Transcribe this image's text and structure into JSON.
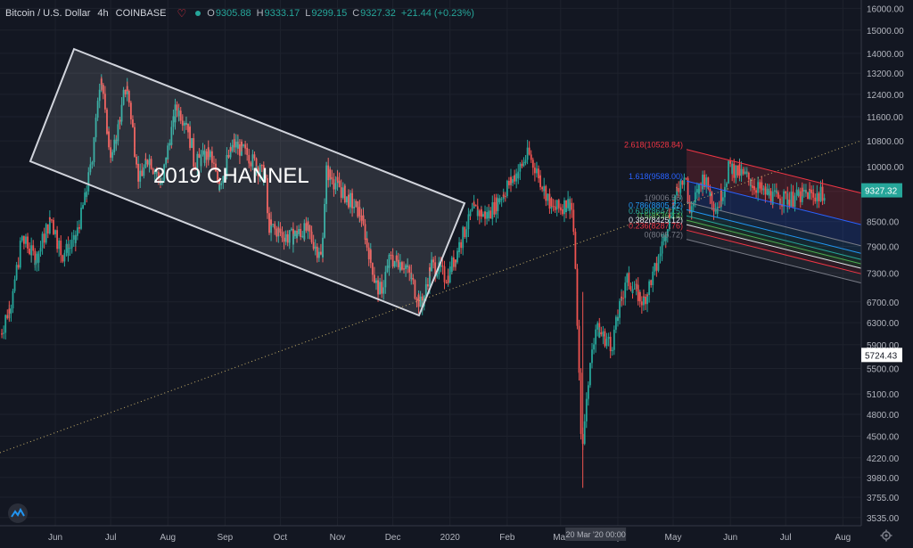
{
  "legend": {
    "symbol": "Bitcoin / U.S. Dollar",
    "timeframe": "4h",
    "exchange": "COINBASE",
    "o_label": "O",
    "o": "9305.88",
    "h_label": "H",
    "h": "9333.17",
    "l_label": "L",
    "l": "9299.15",
    "c_label": "C",
    "c": "9327.32",
    "change": "+21.44 (+0.23%)"
  },
  "colors": {
    "background": "#131722",
    "grid": "#1e222d",
    "up": "#26a69a",
    "down": "#ef5350",
    "axis_text": "#b2b5be",
    "channel": "#d1d4dc",
    "trendline": "#c9b26b"
  },
  "annotation": "2019 CHANNEL",
  "crosshair_label": "20 Mar '20   00:00",
  "chart_data": {
    "type": "candlestick",
    "title": "Bitcoin / U.S. Dollar",
    "ylabel": "",
    "xlabel": "",
    "y_scale": "log",
    "ylim": [
      3450,
      16400
    ],
    "x_range": [
      "2019-05-02",
      "2020-08-11"
    ],
    "y_ticks": [
      16000,
      15000,
      14000,
      13200,
      12400,
      11600,
      10800,
      10000,
      9300,
      8500,
      7900,
      7300,
      6700,
      6300,
      5900,
      5500,
      5100,
      4800,
      4500,
      4220,
      3980,
      3755,
      3535
    ],
    "y_tick_labels": [
      "16000.00",
      "15000.00",
      "14000.00",
      "13200.00",
      "12400.00",
      "11600.00",
      "10800.00",
      "10000.00",
      "",
      "8500.00",
      "7900.00",
      "7300.00",
      "6700.00",
      "6300.00",
      "5900.00",
      "5500.00",
      "5100.00",
      "4800.00",
      "4500.00",
      "4220.00",
      "3980.00",
      "3755.00",
      "3535.00"
    ],
    "x_ticks": [
      {
        "label": "Jun",
        "date": "2019-06-01"
      },
      {
        "label": "Jul",
        "date": "2019-07-01"
      },
      {
        "label": "Aug",
        "date": "2019-08-01"
      },
      {
        "label": "Sep",
        "date": "2019-09-01"
      },
      {
        "label": "Oct",
        "date": "2019-10-01"
      },
      {
        "label": "Nov",
        "date": "2019-11-01"
      },
      {
        "label": "Dec",
        "date": "2019-12-01"
      },
      {
        "label": "2020",
        "date": "2020-01-01"
      },
      {
        "label": "Feb",
        "date": "2020-02-01"
      },
      {
        "label": "Mar",
        "date": "2020-03-01"
      },
      {
        "label": "Apr",
        "date": "2020-04-01"
      },
      {
        "label": "May",
        "date": "2020-05-01"
      },
      {
        "label": "Jun",
        "date": "2020-06-01"
      },
      {
        "label": "Jul",
        "date": "2020-07-01"
      },
      {
        "label": "Aug",
        "date": "2020-08-01"
      }
    ],
    "price_path": [
      [
        "2019-05-03",
        6100
      ],
      [
        "2019-05-10",
        6900
      ],
      [
        "2019-05-14",
        8100
      ],
      [
        "2019-05-22",
        7600
      ],
      [
        "2019-05-30",
        8600
      ],
      [
        "2019-06-05",
        7700
      ],
      [
        "2019-06-12",
        8000
      ],
      [
        "2019-06-18",
        9200
      ],
      [
        "2019-06-22",
        10600
      ],
      [
        "2019-06-26",
        13300
      ],
      [
        "2019-06-29",
        11400
      ],
      [
        "2019-07-02",
        10200
      ],
      [
        "2019-07-10",
        12800
      ],
      [
        "2019-07-17",
        9600
      ],
      [
        "2019-07-22",
        10300
      ],
      [
        "2019-07-29",
        9500
      ],
      [
        "2019-08-06",
        11900
      ],
      [
        "2019-08-12",
        11400
      ],
      [
        "2019-08-16",
        10100
      ],
      [
        "2019-08-24",
        10400
      ],
      [
        "2019-08-29",
        9500
      ],
      [
        "2019-09-06",
        10700
      ],
      [
        "2019-09-15",
        10300
      ],
      [
        "2019-09-23",
        9700
      ],
      [
        "2019-09-25",
        8400
      ],
      [
        "2019-10-06",
        8100
      ],
      [
        "2019-10-16",
        8300
      ],
      [
        "2019-10-24",
        7600
      ],
      [
        "2019-10-26",
        9900
      ],
      [
        "2019-11-04",
        9300
      ],
      [
        "2019-11-14",
        8700
      ],
      [
        "2019-11-22",
        7100
      ],
      [
        "2019-11-25",
        6900
      ],
      [
        "2019-11-30",
        7600
      ],
      [
        "2019-12-08",
        7500
      ],
      [
        "2019-12-17",
        6600
      ],
      [
        "2019-12-22",
        7500
      ],
      [
        "2019-12-31",
        7200
      ],
      [
        "2020-01-08",
        8100
      ],
      [
        "2020-01-14",
        8800
      ],
      [
        "2020-01-22",
        8650
      ],
      [
        "2020-02-01",
        9400
      ],
      [
        "2020-02-09",
        10000
      ],
      [
        "2020-02-13",
        10400
      ],
      [
        "2020-02-19",
        9700
      ],
      [
        "2020-02-26",
        8800
      ],
      [
        "2020-03-07",
        9000
      ],
      [
        "2020-03-09",
        7900
      ],
      [
        "2020-03-12",
        5000
      ],
      [
        "2020-03-13",
        4300
      ],
      [
        "2020-03-16",
        5200
      ],
      [
        "2020-03-20",
        6200
      ],
      [
        "2020-03-29",
        5900
      ],
      [
        "2020-04-06",
        7200
      ],
      [
        "2020-04-15",
        6700
      ],
      [
        "2020-04-23",
        7500
      ],
      [
        "2020-04-30",
        8800
      ],
      [
        "2020-05-08",
        9900
      ],
      [
        "2020-05-10",
        8700
      ],
      [
        "2020-05-18",
        9700
      ],
      [
        "2020-05-25",
        8800
      ],
      [
        "2020-06-01",
        10000
      ],
      [
        "2020-06-10",
        9700
      ],
      [
        "2020-06-16",
        9400
      ],
      [
        "2020-06-26",
        9100
      ],
      [
        "2020-07-05",
        9100
      ],
      [
        "2020-07-14",
        9250
      ],
      [
        "2020-07-20",
        9150
      ],
      [
        "2020-07-22",
        9327
      ]
    ],
    "current_price": "9327.32",
    "marker_price": "5724.43",
    "annotations": {
      "channel_label": "2019 CHANNEL",
      "fib_levels": [
        {
          "label": "2.618(10528.84)",
          "value": 10528.84,
          "color": "#f23645"
        },
        {
          "label": "1.618(9588.00)",
          "value": 9588.0,
          "color": "#2962ff"
        },
        {
          "label": "1(9006.56)",
          "value": 9006.56,
          "color": "#787b86"
        },
        {
          "label": "0.786(8805.22)",
          "value": 8805.22,
          "color": "#2196f3"
        },
        {
          "label": "0.618(8647.15)",
          "value": 8647.15,
          "color": "#26a69a"
        },
        {
          "label": "0.5(8536.14)",
          "value": 8536.14,
          "color": "#4caf50"
        },
        {
          "label": "0.382(8425.12)",
          "value": 8425.12,
          "color": "#e0e3eb"
        },
        {
          "label": "0.236(8287.76)",
          "value": 8287.76,
          "color": "#f23645"
        },
        {
          "label": "0(8065.72)",
          "value": 8065.72,
          "color": "#787b86"
        }
      ]
    }
  }
}
